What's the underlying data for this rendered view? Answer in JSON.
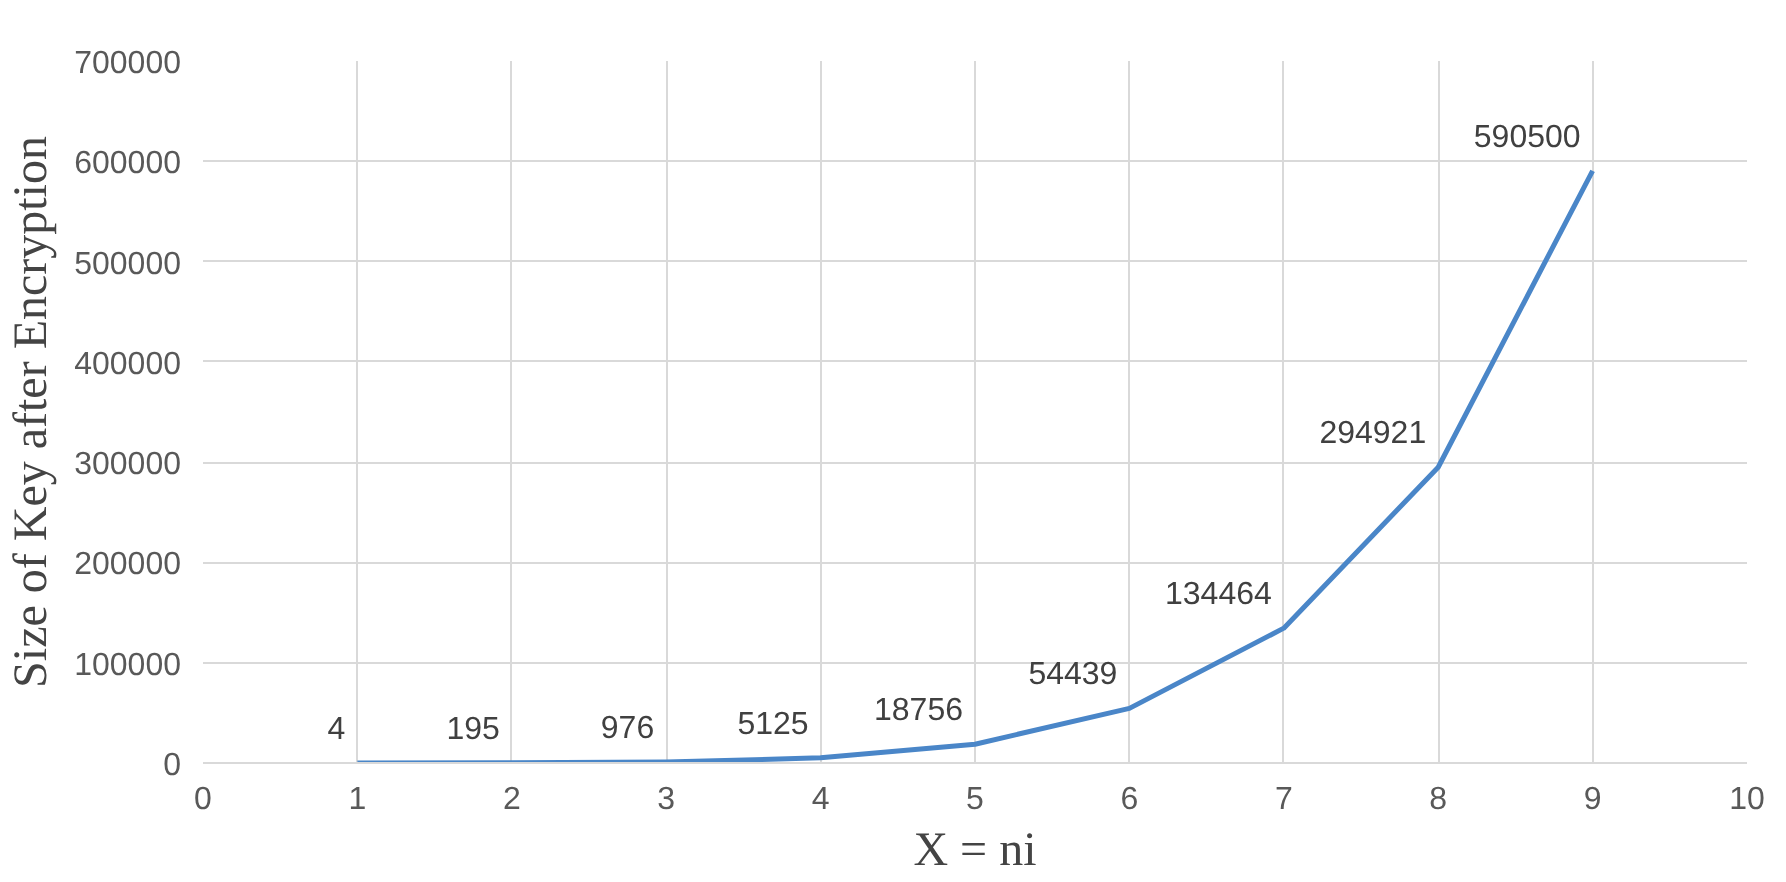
{
  "chart_data": {
    "type": "line",
    "xlabel": "X = ni",
    "ylabel": "Size of Key after Encryption",
    "x": [
      1,
      2,
      3,
      4,
      5,
      6,
      7,
      8,
      9
    ],
    "series": [
      {
        "color": "#4a86c8",
        "values": [
          4,
          195,
          976,
          5125,
          18756,
          54439,
          134464,
          294921,
          590500
        ]
      }
    ],
    "xlim": [
      0,
      10
    ],
    "xticks": [
      0,
      1,
      2,
      3,
      4,
      5,
      6,
      7,
      8,
      9,
      10
    ],
    "ylim": [
      0,
      700000
    ],
    "yticks": [
      0,
      100000,
      200000,
      300000,
      400000,
      500000,
      600000,
      700000
    ],
    "grid": true,
    "data_labels": true,
    "marker": "none",
    "line_style": "solid"
  }
}
